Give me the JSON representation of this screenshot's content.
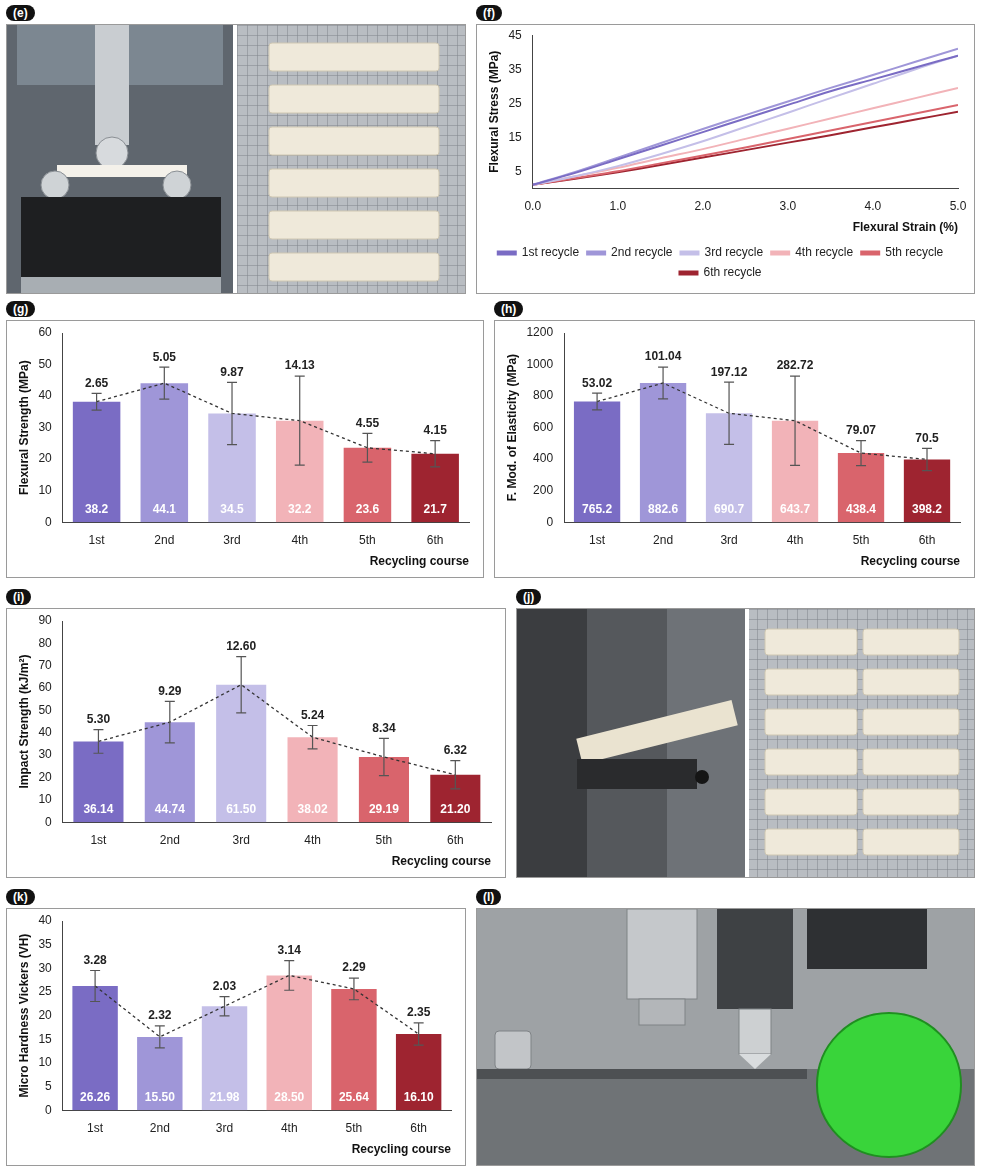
{
  "chart_data": [
    {
      "panel": "(f)",
      "type": "line",
      "x_label": "Flexural Strain (%)",
      "y_label": "Flexural Stress (MPa)",
      "x": [
        0,
        0.5,
        1,
        1.5,
        2,
        2.5,
        3,
        3.5,
        4,
        4.5,
        5
      ],
      "series": [
        {
          "name": "1st recycle",
          "color": "#7a6cc4",
          "values": [
            1,
            4.5,
            8.5,
            12.5,
            16.5,
            20.5,
            24.5,
            28.5,
            32,
            35.5,
            39
          ]
        },
        {
          "name": "2nd recycle",
          "color": "#9f96d8",
          "values": [
            1,
            4.8,
            9,
            13.2,
            17.4,
            21.5,
            25.5,
            29.5,
            33.3,
            37.2,
            41
          ]
        },
        {
          "name": "3rd recycle",
          "color": "#c4bfe8",
          "values": [
            1,
            3.5,
            6.5,
            10,
            13.8,
            18,
            22.2,
            26.5,
            30.7,
            35,
            39
          ]
        },
        {
          "name": "4th recycle",
          "color": "#f2b3b8",
          "values": [
            1,
            3.5,
            6,
            8.8,
            11.5,
            14.5,
            17.5,
            20.5,
            23.5,
            26.5,
            29.5
          ]
        },
        {
          "name": "5th recycle",
          "color": "#d9646c",
          "values": [
            1,
            3,
            5,
            7.3,
            9.6,
            12,
            14.5,
            17,
            19.5,
            22,
            24.5
          ]
        },
        {
          "name": "6th recycle",
          "color": "#9e2430",
          "values": [
            1,
            2.8,
            4.7,
            6.8,
            9,
            11.2,
            13.4,
            15.6,
            17.9,
            20.2,
            22.5
          ]
        }
      ],
      "xlim": [
        0,
        5
      ],
      "xticks": [
        {
          "value": 0,
          "label": "0.0"
        },
        {
          "value": 1,
          "label": "1.0"
        },
        {
          "value": 2,
          "label": "2.0"
        },
        {
          "value": 3,
          "label": "3.0"
        },
        {
          "value": 4,
          "label": "4.0"
        },
        {
          "value": 5,
          "label": "5.0"
        }
      ],
      "ylim": [
        0,
        45
      ],
      "yticks": [
        5,
        15,
        25,
        35,
        45
      ],
      "grid": false,
      "legend": "bottom"
    },
    {
      "panel": "(g)",
      "type": "bar",
      "x_label": "Recycling course",
      "y_label": "Flexural Strength (MPa)",
      "categories": [
        "1st",
        "2nd",
        "3rd",
        "4th",
        "5th",
        "6th"
      ],
      "values": [
        38.2,
        44.1,
        34.5,
        32.2,
        23.6,
        21.7
      ],
      "errors": [
        2.65,
        5.05,
        9.87,
        14.13,
        4.55,
        4.15
      ],
      "colors": [
        "#7a6cc4",
        "#9f96d8",
        "#c4bfe8",
        "#f2b3b8",
        "#d9646c",
        "#9e2430"
      ],
      "ylim": [
        0,
        60
      ],
      "yticks": [
        0,
        10,
        20,
        30,
        40,
        50,
        60
      ],
      "grid": false,
      "data_labels": true
    },
    {
      "panel": "(h)",
      "type": "bar",
      "x_label": "Recycling course",
      "y_label": "F. Mod. of Elasticity (MPa)",
      "categories": [
        "1st",
        "2nd",
        "3rd",
        "4th",
        "5th",
        "6th"
      ],
      "values": [
        765.2,
        882.6,
        690.7,
        643.7,
        438.4,
        398.2
      ],
      "errors": [
        53.02,
        101.04,
        197.12,
        282.72,
        79.07,
        70.5
      ],
      "colors": [
        "#7a6cc4",
        "#9f96d8",
        "#c4bfe8",
        "#f2b3b8",
        "#d9646c",
        "#9e2430"
      ],
      "ylim": [
        0,
        1200
      ],
      "yticks": [
        0,
        200,
        400,
        600,
        800,
        1000,
        1200
      ],
      "grid": false,
      "data_labels": true
    },
    {
      "panel": "(i)",
      "type": "bar",
      "x_label": "Recycling course",
      "y_label": "Impact Strength (kJ/m²)",
      "categories": [
        "1st",
        "2nd",
        "3rd",
        "4th",
        "5th",
        "6th"
      ],
      "values": [
        36.14,
        44.74,
        61.5,
        38.02,
        29.19,
        21.2
      ],
      "value_labels": [
        "36.14",
        "44.74",
        "61.50",
        "38.02",
        "29.19",
        "21.20"
      ],
      "errors": [
        5.3,
        9.29,
        12.6,
        5.24,
        8.34,
        6.32
      ],
      "error_labels": [
        "5.30",
        "9.29",
        "12.60",
        "5.24",
        "8.34",
        "6.32"
      ],
      "colors": [
        "#7a6cc4",
        "#9f96d8",
        "#c4bfe8",
        "#f2b3b8",
        "#d9646c",
        "#9e2430"
      ],
      "ylim": [
        0,
        90
      ],
      "yticks": [
        0,
        10,
        20,
        30,
        40,
        50,
        60,
        70,
        80,
        90
      ],
      "grid": false,
      "data_labels": true
    },
    {
      "panel": "(k)",
      "type": "bar",
      "x_label": "Recycling course",
      "y_label": "Micro Hardness Vickers (VH)",
      "categories": [
        "1st",
        "2nd",
        "3rd",
        "4th",
        "5th",
        "6th"
      ],
      "values": [
        26.26,
        15.5,
        21.98,
        28.5,
        25.64,
        16.1
      ],
      "value_labels": [
        "26.26",
        "15.50",
        "21.98",
        "28.50",
        "25.64",
        "16.10"
      ],
      "errors": [
        3.28,
        2.32,
        2.03,
        3.14,
        2.29,
        2.35
      ],
      "colors": [
        "#7a6cc4",
        "#9f96d8",
        "#c4bfe8",
        "#f2b3b8",
        "#d9646c",
        "#9e2430"
      ],
      "ylim": [
        0,
        40
      ],
      "yticks": [
        0,
        5,
        10,
        15,
        20,
        25,
        30,
        35,
        40
      ],
      "grid": false,
      "data_labels": true
    }
  ],
  "photo_panels": [
    {
      "panel": "(e)"
    },
    {
      "panel": "(j)"
    },
    {
      "panel": "(l)"
    }
  ]
}
